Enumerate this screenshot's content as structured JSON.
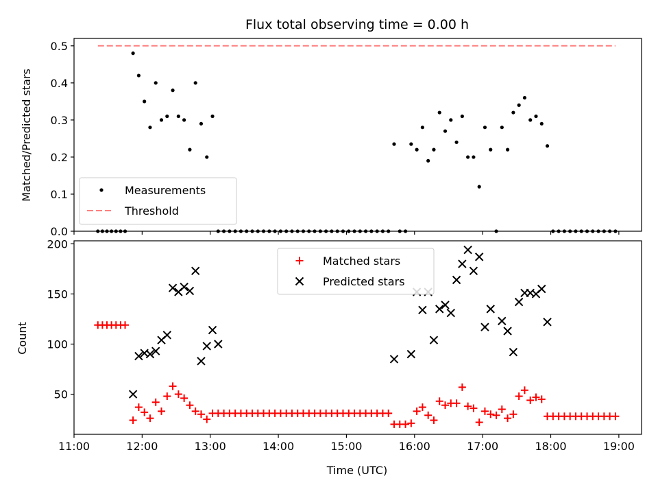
{
  "chart_data": [
    {
      "type": "scatter",
      "title": "Flux total observing time = 0.00 h",
      "xlabel": "",
      "ylabel": "Matched/Predicted stars",
      "xlim": [
        "11:00",
        "19:20"
      ],
      "ylim": [
        0,
        0.52
      ],
      "yticks": [
        "0.0",
        "0.1",
        "0.2",
        "0.3",
        "0.4",
        "0.5"
      ],
      "legend_position": "lower-left",
      "series": [
        {
          "name": "Measurements",
          "marker": "dot",
          "color": "#000000",
          "points": [
            [
              "11:21",
              0
            ],
            [
              "11:25",
              0
            ],
            [
              "11:29",
              0
            ],
            [
              "11:33",
              0
            ],
            [
              "11:37",
              0
            ],
            [
              "11:41",
              0
            ],
            [
              "11:45",
              0
            ],
            [
              "11:52",
              0.48
            ],
            [
              "11:57",
              0.42
            ],
            [
              "12:02",
              0.35
            ],
            [
              "12:07",
              0.28
            ],
            [
              "12:12",
              0.4
            ],
            [
              "12:17",
              0.3
            ],
            [
              "12:22",
              0.31
            ],
            [
              "12:27",
              0.38
            ],
            [
              "12:32",
              0.31
            ],
            [
              "12:37",
              0.3
            ],
            [
              "12:42",
              0.22
            ],
            [
              "12:47",
              0.4
            ],
            [
              "12:52",
              0.29
            ],
            [
              "12:57",
              0.2
            ],
            [
              "13:02",
              0.31
            ],
            [
              "13:07",
              0
            ],
            [
              "13:12",
              0
            ],
            [
              "13:17",
              0
            ],
            [
              "13:22",
              0
            ],
            [
              "13:27",
              0
            ],
            [
              "13:32",
              0
            ],
            [
              "13:37",
              0
            ],
            [
              "13:42",
              0
            ],
            [
              "13:47",
              0
            ],
            [
              "13:52",
              0
            ],
            [
              "13:57",
              0
            ],
            [
              "14:02",
              0
            ],
            [
              "14:07",
              0
            ],
            [
              "14:12",
              0
            ],
            [
              "14:17",
              0
            ],
            [
              "14:22",
              0
            ],
            [
              "14:27",
              0
            ],
            [
              "14:32",
              0
            ],
            [
              "14:37",
              0
            ],
            [
              "14:42",
              0
            ],
            [
              "14:47",
              0
            ],
            [
              "14:52",
              0
            ],
            [
              "14:57",
              0
            ],
            [
              "15:02",
              0
            ],
            [
              "15:07",
              0
            ],
            [
              "15:12",
              0
            ],
            [
              "15:17",
              0
            ],
            [
              "15:22",
              0
            ],
            [
              "15:27",
              0
            ],
            [
              "15:32",
              0
            ],
            [
              "15:37",
              0
            ],
            [
              "15:42",
              0.235
            ],
            [
              "15:47",
              0
            ],
            [
              "15:52",
              0
            ],
            [
              "15:57",
              0.235
            ],
            [
              "16:02",
              0.22
            ],
            [
              "16:07",
              0.28
            ],
            [
              "16:12",
              0.19
            ],
            [
              "16:17",
              0.22
            ],
            [
              "16:22",
              0.32
            ],
            [
              "16:27",
              0.27
            ],
            [
              "16:32",
              0.3
            ],
            [
              "16:37",
              0.24
            ],
            [
              "16:42",
              0.31
            ],
            [
              "16:47",
              0.2
            ],
            [
              "16:52",
              0.2
            ],
            [
              "16:57",
              0.12
            ],
            [
              "17:02",
              0.28
            ],
            [
              "17:07",
              0.22
            ],
            [
              "17:12",
              0
            ],
            [
              "17:17",
              0.28
            ],
            [
              "17:22",
              0.22
            ],
            [
              "17:27",
              0.32
            ],
            [
              "17:32",
              0.34
            ],
            [
              "17:37",
              0.36
            ],
            [
              "17:42",
              0.3
            ],
            [
              "17:47",
              0.31
            ],
            [
              "17:52",
              0.29
            ],
            [
              "17:57",
              0.23
            ],
            [
              "18:02",
              0
            ],
            [
              "18:07",
              0
            ],
            [
              "18:12",
              0
            ],
            [
              "18:17",
              0
            ],
            [
              "18:22",
              0
            ],
            [
              "18:27",
              0
            ],
            [
              "18:32",
              0
            ],
            [
              "18:37",
              0
            ],
            [
              "18:42",
              0
            ],
            [
              "18:47",
              0
            ],
            [
              "18:52",
              0
            ],
            [
              "18:57",
              0
            ]
          ]
        },
        {
          "name": "Threshold",
          "marker": "dashed-line",
          "color": "#ff7f7f",
          "points": [
            [
              "11:21",
              0.5
            ],
            [
              "18:57",
              0.5
            ]
          ]
        }
      ]
    },
    {
      "type": "scatter",
      "title": "",
      "xlabel": "Time (UTC)",
      "ylabel": "Count",
      "xlim": [
        "11:00",
        "19:20"
      ],
      "ylim": [
        10,
        203
      ],
      "xticks": [
        "11:00",
        "12:00",
        "13:00",
        "14:00",
        "15:00",
        "16:00",
        "17:00",
        "18:00",
        "19:00"
      ],
      "yticks": [
        "50",
        "100",
        "150",
        "200"
      ],
      "legend_position": "upper-center",
      "series": [
        {
          "name": "Matched stars",
          "marker": "plus",
          "color": "#ff0000",
          "points": [
            [
              "11:21",
              119
            ],
            [
              "11:25",
              119
            ],
            [
              "11:29",
              119
            ],
            [
              "11:33",
              119
            ],
            [
              "11:37",
              119
            ],
            [
              "11:41",
              119
            ],
            [
              "11:45",
              119
            ],
            [
              "11:52",
              24
            ],
            [
              "11:57",
              37
            ],
            [
              "12:02",
              32
            ],
            [
              "12:07",
              26
            ],
            [
              "12:12",
              42
            ],
            [
              "12:17",
              33
            ],
            [
              "12:22",
              48
            ],
            [
              "12:27",
              58
            ],
            [
              "12:32",
              50
            ],
            [
              "12:37",
              46
            ],
            [
              "12:42",
              39
            ],
            [
              "12:47",
              33
            ],
            [
              "12:52",
              30
            ],
            [
              "12:57",
              25
            ],
            [
              "13:02",
              31
            ],
            [
              "13:07",
              31
            ],
            [
              "13:12",
              31
            ],
            [
              "13:17",
              31
            ],
            [
              "13:22",
              31
            ],
            [
              "13:27",
              31
            ],
            [
              "13:32",
              31
            ],
            [
              "13:37",
              31
            ],
            [
              "13:42",
              31
            ],
            [
              "13:47",
              31
            ],
            [
              "13:52",
              31
            ],
            [
              "13:57",
              31
            ],
            [
              "14:02",
              31
            ],
            [
              "14:07",
              31
            ],
            [
              "14:12",
              31
            ],
            [
              "14:17",
              31
            ],
            [
              "14:22",
              31
            ],
            [
              "14:27",
              31
            ],
            [
              "14:32",
              31
            ],
            [
              "14:37",
              31
            ],
            [
              "14:42",
              31
            ],
            [
              "14:47",
              31
            ],
            [
              "14:52",
              31
            ],
            [
              "14:57",
              31
            ],
            [
              "15:02",
              31
            ],
            [
              "15:07",
              31
            ],
            [
              "15:12",
              31
            ],
            [
              "15:17",
              31
            ],
            [
              "15:22",
              31
            ],
            [
              "15:27",
              31
            ],
            [
              "15:32",
              31
            ],
            [
              "15:37",
              31
            ],
            [
              "15:42",
              20
            ],
            [
              "15:47",
              20
            ],
            [
              "15:52",
              20
            ],
            [
              "15:57",
              21
            ],
            [
              "16:02",
              33
            ],
            [
              "16:07",
              37
            ],
            [
              "16:12",
              29
            ],
            [
              "16:17",
              24
            ],
            [
              "16:22",
              43
            ],
            [
              "16:27",
              39
            ],
            [
              "16:32",
              41
            ],
            [
              "16:37",
              41
            ],
            [
              "16:42",
              57
            ],
            [
              "16:47",
              38
            ],
            [
              "16:52",
              36
            ],
            [
              "16:57",
              22
            ],
            [
              "17:02",
              33
            ],
            [
              "17:07",
              30
            ],
            [
              "17:12",
              29
            ],
            [
              "17:17",
              35
            ],
            [
              "17:22",
              26
            ],
            [
              "17:27",
              30
            ],
            [
              "17:32",
              48
            ],
            [
              "17:37",
              54
            ],
            [
              "17:42",
              44
            ],
            [
              "17:47",
              47
            ],
            [
              "17:52",
              45
            ],
            [
              "17:57",
              28
            ],
            [
              "18:02",
              28
            ],
            [
              "18:07",
              28
            ],
            [
              "18:12",
              28
            ],
            [
              "18:17",
              28
            ],
            [
              "18:22",
              28
            ],
            [
              "18:27",
              28
            ],
            [
              "18:32",
              28
            ],
            [
              "18:37",
              28
            ],
            [
              "18:42",
              28
            ],
            [
              "18:47",
              28
            ],
            [
              "18:52",
              28
            ],
            [
              "18:57",
              28
            ]
          ]
        },
        {
          "name": "Predicted stars",
          "marker": "x",
          "color": "#000000",
          "points": [
            [
              "11:52",
              50
            ],
            [
              "11:57",
              88
            ],
            [
              "12:02",
              91
            ],
            [
              "12:07",
              90
            ],
            [
              "12:12",
              93
            ],
            [
              "12:17",
              104
            ],
            [
              "12:22",
              109
            ],
            [
              "12:27",
              156
            ],
            [
              "12:32",
              152
            ],
            [
              "12:37",
              157
            ],
            [
              "12:42",
              153
            ],
            [
              "12:47",
              173
            ],
            [
              "12:52",
              83
            ],
            [
              "12:57",
              98
            ],
            [
              "13:02",
              114
            ],
            [
              "13:07",
              100
            ],
            [
              "15:42",
              85
            ],
            [
              "15:57",
              90
            ],
            [
              "16:02",
              152
            ],
            [
              "16:07",
              134
            ],
            [
              "16:12",
              152
            ],
            [
              "16:17",
              104
            ],
            [
              "16:22",
              135
            ],
            [
              "16:27",
              139
            ],
            [
              "16:32",
              131
            ],
            [
              "16:37",
              164
            ],
            [
              "16:42",
              180
            ],
            [
              "16:47",
              194
            ],
            [
              "16:52",
              173
            ],
            [
              "16:57",
              187
            ],
            [
              "17:02",
              117
            ],
            [
              "17:07",
              135
            ],
            [
              "17:17",
              123
            ],
            [
              "17:22",
              113
            ],
            [
              "17:27",
              92
            ],
            [
              "17:32",
              142
            ],
            [
              "17:37",
              151
            ],
            [
              "17:42",
              151
            ],
            [
              "17:47",
              150
            ],
            [
              "17:52",
              155
            ],
            [
              "17:57",
              122
            ]
          ]
        }
      ]
    }
  ]
}
